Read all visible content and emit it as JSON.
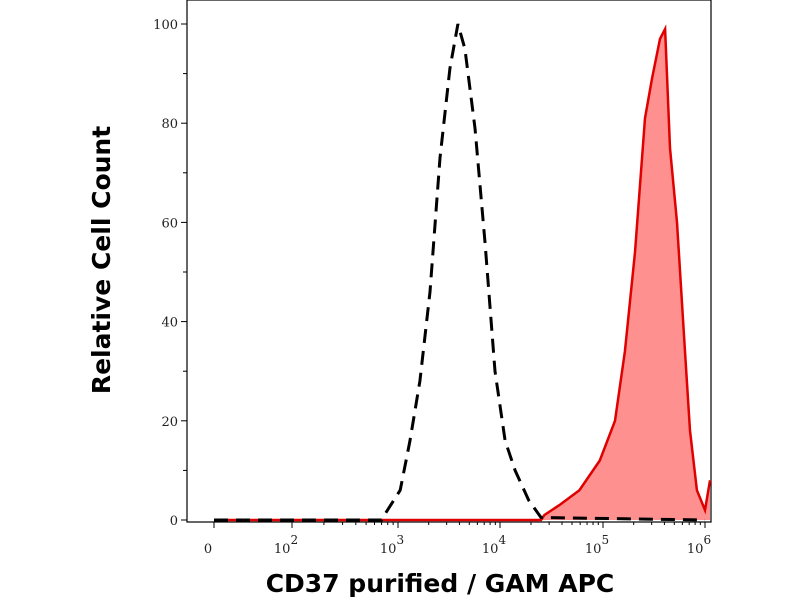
{
  "chart_data": {
    "type": "area",
    "title": "",
    "xlabel": "CD37 purified / GAM APC",
    "ylabel": "Relative Cell Count",
    "x_scale": "biexponential (log above 10^2)",
    "xlim": [
      0,
      1000000
    ],
    "ylim": [
      0,
      100
    ],
    "grid": false,
    "legend": "none",
    "x_ticks": [
      {
        "value": 0,
        "base": "0",
        "exp": ""
      },
      {
        "value": 100,
        "base": "10",
        "exp": "2"
      },
      {
        "value": 1000,
        "base": "10",
        "exp": "3"
      },
      {
        "value": 10000,
        "base": "10",
        "exp": "4"
      },
      {
        "value": 100000,
        "base": "10",
        "exp": "5"
      },
      {
        "value": 1000000,
        "base": "10",
        "exp": "6"
      }
    ],
    "y_ticks": [
      "0",
      "20",
      "40",
      "60",
      "80",
      "100"
    ],
    "series": [
      {
        "style": "dashed-black-outline",
        "color": "#000000",
        "x": [
          0,
          700,
          745,
          1050,
          1310,
          1640,
          2060,
          2580,
          3230,
          3870,
          4530,
          5690,
          7120,
          8930,
          11200,
          14000,
          19000,
          25000,
          1000000
        ],
        "y": [
          0,
          0,
          1,
          6,
          16,
          28,
          46,
          73,
          91,
          100,
          95,
          79,
          56,
          30,
          16,
          10,
          4,
          0.5,
          0
        ]
      },
      {
        "style": "filled-red",
        "color": "#e00000",
        "fill": "#ff9090",
        "x": [
          0,
          25000,
          27000,
          37700,
          59000,
          93000,
          131000,
          164000,
          206000,
          258000,
          302000,
          362000,
          406000,
          454000,
          532000,
          636000,
          713000,
          833000,
          1000000,
          1120000
        ],
        "y": [
          0,
          0,
          1,
          3,
          6,
          12,
          20,
          34,
          54,
          81,
          89,
          97,
          99,
          75,
          60,
          34,
          18,
          6,
          2,
          8
        ]
      }
    ]
  }
}
